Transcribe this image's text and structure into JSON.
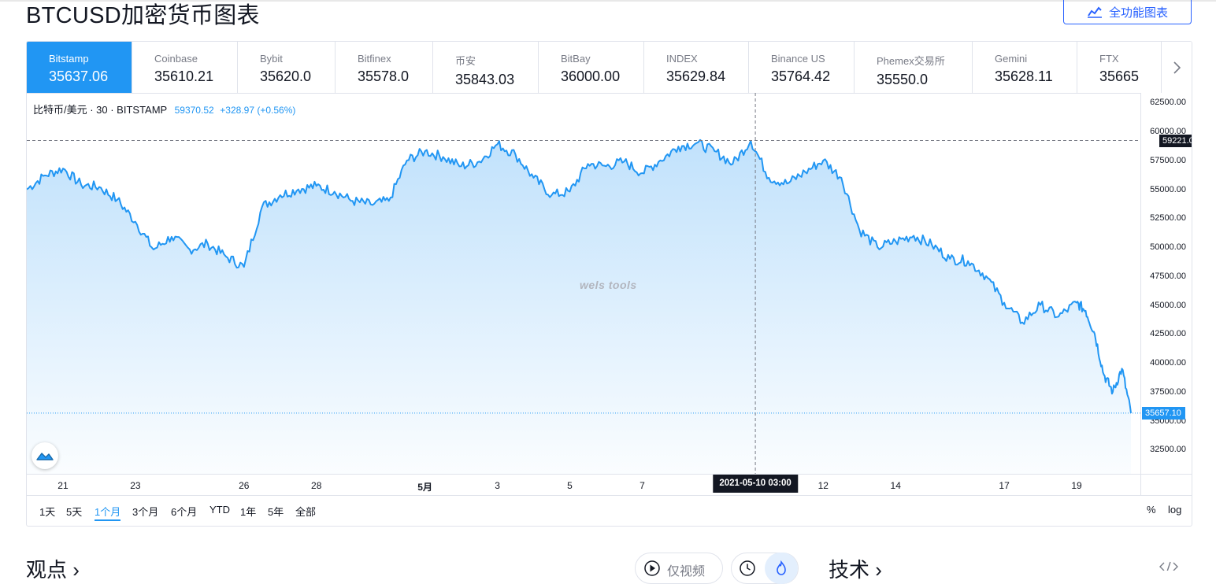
{
  "header": {
    "title": "BTCUSD加密货币图表",
    "full_chart_label": "全功能图表"
  },
  "exchanges": [
    {
      "name": "Bitstamp",
      "price": "35637.06",
      "active": true
    },
    {
      "name": "Coinbase",
      "price": "35610.21"
    },
    {
      "name": "Bybit",
      "price": "35620.0"
    },
    {
      "name": "Bitfinex",
      "price": "35578.0"
    },
    {
      "name": "币安",
      "price": "35843.03"
    },
    {
      "name": "BitBay",
      "price": "36000.00"
    },
    {
      "name": "INDEX",
      "price": "35629.84"
    },
    {
      "name": "Binance US",
      "price": "35764.42"
    },
    {
      "name": "Phemex交易所",
      "price": "35550.0"
    },
    {
      "name": "Gemini",
      "price": "35628.11"
    },
    {
      "name": "FTX",
      "price": "35665"
    }
  ],
  "legend": {
    "symbol": "比特币/美元 · 30 · BITSTAMP",
    "value": "59370.52",
    "change": "+328.97 (+0.56%)"
  },
  "watermark": "wels tools",
  "chart_data": {
    "type": "area",
    "x": [
      "2021-04-20 00:00",
      "2021-04-20 12:00",
      "2021-04-21 00:00",
      "2021-04-21 12:00",
      "2021-04-22 00:00",
      "2021-04-22 12:00",
      "2021-04-23 00:00",
      "2021-04-23 12:00",
      "2021-04-24 00:00",
      "2021-04-24 12:00",
      "2021-04-25 00:00",
      "2021-04-25 12:00",
      "2021-04-26 00:00",
      "2021-04-26 12:00",
      "2021-04-27 00:00",
      "2021-04-27 12:00",
      "2021-04-28 00:00",
      "2021-04-28 12:00",
      "2021-04-29 00:00",
      "2021-04-29 12:00",
      "2021-04-30 00:00",
      "2021-04-30 12:00",
      "2021-05-01 00:00",
      "2021-05-01 12:00",
      "2021-05-02 00:00",
      "2021-05-02 12:00",
      "2021-05-03 00:00",
      "2021-05-03 12:00",
      "2021-05-04 00:00",
      "2021-05-04 12:00",
      "2021-05-05 00:00",
      "2021-05-05 12:00",
      "2021-05-06 00:00",
      "2021-05-06 12:00",
      "2021-05-07 00:00",
      "2021-05-07 12:00",
      "2021-05-08 00:00",
      "2021-05-08 12:00",
      "2021-05-09 00:00",
      "2021-05-09 12:00",
      "2021-05-10 00:00",
      "2021-05-10 12:00",
      "2021-05-11 00:00",
      "2021-05-11 12:00",
      "2021-05-12 00:00",
      "2021-05-12 12:00",
      "2021-05-13 00:00",
      "2021-05-13 12:00",
      "2021-05-14 00:00",
      "2021-05-14 12:00",
      "2021-05-15 00:00",
      "2021-05-15 12:00",
      "2021-05-16 00:00",
      "2021-05-16 12:00",
      "2021-05-17 00:00",
      "2021-05-17 12:00",
      "2021-05-18 00:00",
      "2021-05-18 12:00",
      "2021-05-19 00:00",
      "2021-05-19 06:00",
      "2021-05-19 12:00",
      "2021-05-19 18:00",
      "2021-05-20 00:00",
      "2021-05-20 06:00",
      "2021-05-20 12:00"
    ],
    "values": [
      55000,
      56200,
      56800,
      55400,
      55200,
      54100,
      52200,
      49800,
      50900,
      49800,
      50300,
      49200,
      48300,
      53500,
      54500,
      55000,
      55300,
      54800,
      54000,
      53700,
      54000,
      57500,
      58300,
      57800,
      57000,
      57400,
      58900,
      58000,
      56000,
      54500,
      54800,
      57200,
      57000,
      57400,
      56400,
      57500,
      58700,
      59000,
      58300,
      57200,
      59200,
      56000,
      55500,
      56500,
      57500,
      56000,
      51500,
      50000,
      50500,
      51000,
      50200,
      49000,
      48800,
      47500,
      45200,
      43500,
      45000,
      44000,
      45200,
      44500,
      42500,
      39000,
      37500,
      39500,
      35657
    ],
    "hover_point": {
      "x": "2021-05-10 03:00",
      "y": 59221.02
    },
    "last_value": 35657.1,
    "ylim": [
      31500,
      63000
    ],
    "y_ticks": [
      32500,
      35000,
      37500,
      40000,
      42500,
      45000,
      47500,
      50000,
      52500,
      55000,
      57500,
      60000,
      62500
    ],
    "y_tick_labels": [
      "32500.00",
      "35000.00",
      "37500.00",
      "40000.00",
      "42500.00",
      "45000.00",
      "47500.00",
      "50000.00",
      "52500.00",
      "55000.00",
      "57500.00",
      "60000.00",
      "62500.00"
    ],
    "x_ticks": [
      {
        "label": "21",
        "x": "2021-04-21 00:00"
      },
      {
        "label": "23",
        "x": "2021-04-23 00:00"
      },
      {
        "label": "26",
        "x": "2021-04-26 00:00"
      },
      {
        "label": "28",
        "x": "2021-04-28 00:00"
      },
      {
        "label": "5月",
        "x": "2021-05-01 00:00",
        "bold": true
      },
      {
        "label": "3",
        "x": "2021-05-03 00:00"
      },
      {
        "label": "5",
        "x": "2021-05-05 00:00"
      },
      {
        "label": "7",
        "x": "2021-05-07 00:00"
      },
      {
        "label": "12",
        "x": "2021-05-12 00:00"
      },
      {
        "label": "14",
        "x": "2021-05-14 00:00"
      },
      {
        "label": "17",
        "x": "2021-05-17 00:00"
      },
      {
        "label": "19",
        "x": "2021-05-19 00:00"
      }
    ],
    "hover_x_label": "2021-05-10   03:00",
    "hover_y_label": "59221.02",
    "last_label": "35657.10",
    "line_color": "#2196f3",
    "grid": false
  },
  "ranges": [
    {
      "label": "1天"
    },
    {
      "label": "5天"
    },
    {
      "label": "1个月",
      "active": true
    },
    {
      "label": "3个月"
    },
    {
      "label": "6个月"
    },
    {
      "label": "YTD"
    },
    {
      "label": "1年"
    },
    {
      "label": "5年"
    },
    {
      "label": "全部"
    }
  ],
  "options": {
    "percent": "%",
    "log": "log"
  },
  "below": {
    "ideas_title": "观点 ›",
    "video_only": "仅视频",
    "tech_title": "技术 ›"
  },
  "colors": {
    "accent": "#2196f3",
    "brand": "#2962ff"
  }
}
